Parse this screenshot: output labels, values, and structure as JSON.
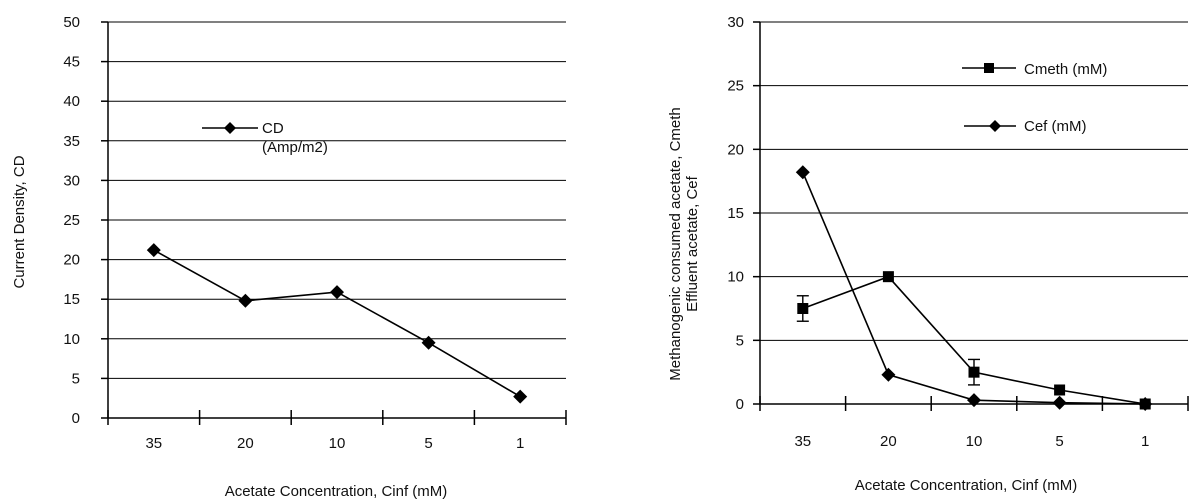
{
  "chart_data": [
    {
      "type": "line",
      "title": "",
      "xlabel": "Acetate Concentration, Cinf (mM)",
      "ylabel": "Current Density, CD",
      "categories": [
        "35",
        "20",
        "10",
        "5",
        "1"
      ],
      "ylim": [
        0,
        50
      ],
      "yticks": [
        "0",
        "5",
        "10",
        "15",
        "20",
        "25",
        "30",
        "35",
        "40",
        "45",
        "50"
      ],
      "grid": true,
      "legend": "upper-center",
      "series": [
        {
          "name": "CD",
          "name_line2": "(Amp/m2)",
          "marker": "diamond",
          "color": "#000000",
          "values": [
            21.2,
            14.8,
            15.9,
            9.5,
            2.7
          ]
        }
      ]
    },
    {
      "type": "line",
      "title": "",
      "xlabel": "Acetate Concentration, Cinf (mM)",
      "ylabel": "Methanogenic consumed acetate, Cmeth",
      "ylabel2": "Effluent acetate, Cef",
      "categories": [
        "35",
        "20",
        "10",
        "5",
        "1"
      ],
      "ylim": [
        0,
        30
      ],
      "yticks": [
        "0",
        "5",
        "10",
        "15",
        "20",
        "25",
        "30"
      ],
      "grid": true,
      "legend": "top-right",
      "series": [
        {
          "name": "Cmeth (mM)",
          "marker": "square",
          "color": "#000000",
          "values": [
            7.5,
            10.0,
            2.5,
            1.1,
            0.0
          ],
          "error": [
            1.0,
            0,
            1.0,
            0,
            0
          ]
        },
        {
          "name": "Cef (mM)",
          "marker": "diamond",
          "color": "#000000",
          "values": [
            18.2,
            2.3,
            0.3,
            0.1,
            0.0
          ]
        }
      ]
    }
  ]
}
